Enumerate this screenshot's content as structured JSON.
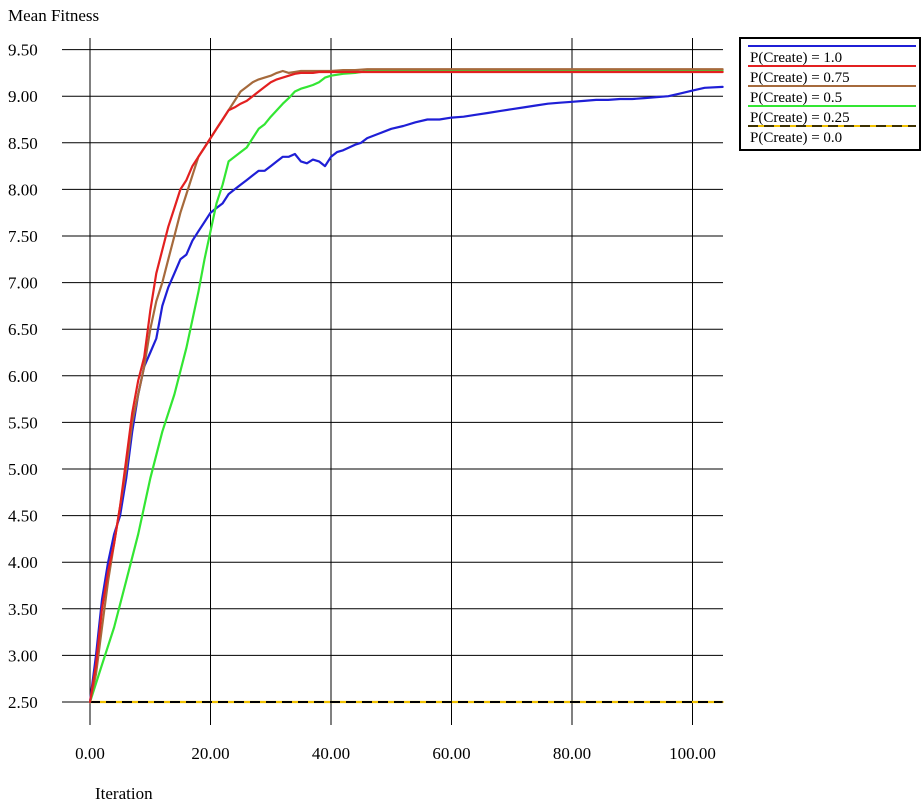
{
  "chart_data": {
    "type": "line",
    "title": "",
    "ylabel": "Mean Fitness",
    "xlabel": "Iteration",
    "xlim": [
      0,
      105
    ],
    "ylim": [
      2.3,
      9.65
    ],
    "grid": true,
    "legend_position": "top-right",
    "x_ticks": [
      0,
      20,
      40,
      60,
      80,
      100
    ],
    "x_tick_labels": [
      "0.00",
      "20.00",
      "40.00",
      "60.00",
      "80.00",
      "100.00"
    ],
    "y_ticks": [
      2.5,
      3.0,
      3.5,
      4.0,
      4.5,
      5.0,
      5.5,
      6.0,
      6.5,
      7.0,
      7.5,
      8.0,
      8.5,
      9.0,
      9.5
    ],
    "y_tick_labels": [
      "2.50",
      "3.00",
      "3.50",
      "4.00",
      "4.50",
      "5.00",
      "5.50",
      "6.00",
      "6.50",
      "7.00",
      "7.50",
      "8.00",
      "8.50",
      "9.00",
      "9.50"
    ],
    "series": [
      {
        "name": "P(Create) = 1.0",
        "color": "#1f1fd6",
        "dashed": false,
        "x": [
          0,
          1,
          2,
          3,
          4,
          5,
          6,
          7,
          8,
          9,
          10,
          11,
          12,
          13,
          14,
          15,
          16,
          17,
          18,
          19,
          20,
          21,
          22,
          23,
          24,
          25,
          26,
          27,
          28,
          29,
          30,
          31,
          32,
          33,
          34,
          35,
          36,
          37,
          38,
          39,
          40,
          41,
          42,
          43,
          44,
          45,
          46,
          48,
          50,
          52,
          54,
          56,
          58,
          60,
          62,
          64,
          66,
          68,
          70,
          72,
          74,
          76,
          78,
          80,
          82,
          84,
          86,
          88,
          90,
          92,
          94,
          96,
          98,
          100,
          102,
          105
        ],
        "y": [
          2.5,
          3.0,
          3.6,
          4.0,
          4.3,
          4.5,
          4.9,
          5.4,
          5.8,
          6.1,
          6.25,
          6.4,
          6.75,
          6.95,
          7.1,
          7.25,
          7.3,
          7.45,
          7.55,
          7.65,
          7.75,
          7.8,
          7.85,
          7.95,
          8.0,
          8.05,
          8.1,
          8.15,
          8.2,
          8.2,
          8.25,
          8.3,
          8.35,
          8.35,
          8.38,
          8.3,
          8.28,
          8.32,
          8.3,
          8.25,
          8.35,
          8.4,
          8.42,
          8.45,
          8.48,
          8.5,
          8.55,
          8.6,
          8.65,
          8.68,
          8.72,
          8.75,
          8.75,
          8.77,
          8.78,
          8.8,
          8.82,
          8.84,
          8.86,
          8.88,
          8.9,
          8.92,
          8.93,
          8.94,
          8.95,
          8.96,
          8.96,
          8.97,
          8.97,
          8.98,
          8.99,
          9.0,
          9.03,
          9.06,
          9.09,
          9.1
        ]
      },
      {
        "name": "P(Create) = 0.75",
        "color": "#e32020",
        "dashed": false,
        "x": [
          0,
          1,
          2,
          3,
          4,
          5,
          6,
          7,
          8,
          9,
          10,
          11,
          12,
          13,
          14,
          15,
          16,
          17,
          18,
          19,
          20,
          21,
          22,
          23,
          24,
          25,
          26,
          27,
          28,
          29,
          30,
          31,
          32,
          33,
          34,
          35,
          36,
          37,
          38,
          40,
          42,
          44,
          46,
          50,
          60,
          70,
          80,
          90,
          100,
          105
        ],
        "y": [
          2.5,
          2.9,
          3.5,
          3.9,
          4.2,
          4.6,
          5.1,
          5.6,
          5.95,
          6.2,
          6.7,
          7.1,
          7.35,
          7.6,
          7.8,
          8.0,
          8.1,
          8.25,
          8.35,
          8.45,
          8.55,
          8.65,
          8.75,
          8.85,
          8.88,
          8.92,
          8.95,
          9.0,
          9.05,
          9.1,
          9.15,
          9.18,
          9.2,
          9.22,
          9.24,
          9.25,
          9.25,
          9.25,
          9.26,
          9.26,
          9.26,
          9.26,
          9.26,
          9.26,
          9.26,
          9.26,
          9.26,
          9.26,
          9.26,
          9.26
        ]
      },
      {
        "name": "P(Create) = 0.5",
        "color": "#a66a3c",
        "dashed": false,
        "x": [
          0,
          1,
          2,
          3,
          4,
          5,
          6,
          7,
          8,
          9,
          10,
          11,
          12,
          13,
          14,
          15,
          16,
          17,
          18,
          19,
          20,
          21,
          22,
          23,
          24,
          25,
          26,
          27,
          28,
          29,
          30,
          31,
          32,
          33,
          34,
          35,
          36,
          38,
          40,
          42,
          44,
          46,
          50,
          60,
          70,
          80,
          90,
          100,
          105
        ],
        "y": [
          2.5,
          2.8,
          3.3,
          3.8,
          4.2,
          4.6,
          5.0,
          5.5,
          5.8,
          6.1,
          6.5,
          6.8,
          7.0,
          7.25,
          7.5,
          7.75,
          7.95,
          8.15,
          8.35,
          8.45,
          8.55,
          8.65,
          8.75,
          8.85,
          8.95,
          9.05,
          9.1,
          9.15,
          9.18,
          9.2,
          9.22,
          9.25,
          9.27,
          9.25,
          9.26,
          9.27,
          9.27,
          9.27,
          9.27,
          9.28,
          9.28,
          9.29,
          9.29,
          9.29,
          9.29,
          9.29,
          9.29,
          9.29,
          9.29
        ]
      },
      {
        "name": "P(Create) = 0.25",
        "color": "#33e633",
        "dashed": false,
        "x": [
          0,
          2,
          4,
          6,
          8,
          10,
          12,
          14,
          16,
          18,
          19,
          20,
          21,
          22,
          23,
          24,
          25,
          26,
          27,
          28,
          29,
          30,
          31,
          32,
          33,
          34,
          35,
          36,
          37,
          38,
          39,
          40,
          42,
          44,
          46,
          50,
          60,
          70,
          80,
          90,
          100,
          105
        ],
        "y": [
          2.5,
          2.9,
          3.3,
          3.8,
          4.3,
          4.9,
          5.4,
          5.8,
          6.3,
          6.9,
          7.25,
          7.55,
          7.85,
          8.05,
          8.3,
          8.35,
          8.4,
          8.45,
          8.55,
          8.65,
          8.7,
          8.78,
          8.85,
          8.92,
          8.98,
          9.05,
          9.08,
          9.1,
          9.12,
          9.15,
          9.2,
          9.22,
          9.24,
          9.25,
          9.27,
          9.27,
          9.27,
          9.27,
          9.27,
          9.27,
          9.27,
          9.27
        ]
      },
      {
        "name": "P(Create) = 0.0",
        "color": "#f2c200",
        "dashed": true,
        "x": [
          0,
          105
        ],
        "y": [
          2.5,
          2.5
        ]
      }
    ]
  }
}
